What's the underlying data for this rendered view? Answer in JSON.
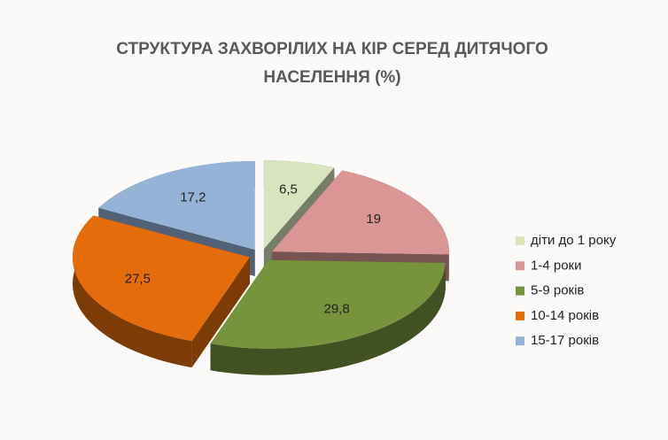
{
  "chart_data": {
    "type": "pie3d",
    "title": "СТРУКТУРА ЗАХВОРІЛИХ НА КІР СЕРЕД ДИТЯЧОГО НАСЕЛЕННЯ (%)",
    "categories": [
      "діти до 1 року",
      "1-4 роки",
      "5-9 років",
      "10-14 років",
      "15-17 років"
    ],
    "values": [
      6.5,
      19,
      29.8,
      27.5,
      17.2
    ],
    "value_labels": [
      "6,5",
      "19",
      "29,8",
      "27,5",
      "17,2"
    ],
    "colors": [
      "#d7e4bd",
      "#d99694",
      "#77933c",
      "#e46c0a",
      "#95b3d7"
    ],
    "legend": "right"
  }
}
